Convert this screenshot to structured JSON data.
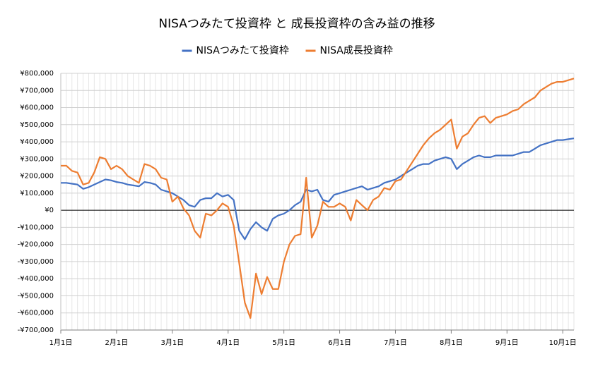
{
  "chart_data": {
    "type": "line",
    "title": "NISAつみたて投資枠 と 成長投資枠の含み益の推移",
    "categories": [
      "1月1日",
      null,
      null,
      null,
      null,
      null,
      null,
      null,
      null,
      null,
      "2月1日",
      null,
      null,
      null,
      null,
      null,
      null,
      null,
      null,
      null,
      "3月1日",
      null,
      null,
      null,
      null,
      null,
      null,
      null,
      null,
      null,
      "4月1日",
      null,
      null,
      null,
      null,
      null,
      null,
      null,
      null,
      null,
      "5月1日",
      null,
      null,
      null,
      null,
      null,
      null,
      null,
      null,
      null,
      "6月1日",
      null,
      null,
      null,
      null,
      null,
      null,
      null,
      null,
      null,
      "7月1日",
      null,
      null,
      null,
      null,
      null,
      null,
      null,
      null,
      null,
      "8月1日",
      null,
      null,
      null,
      null,
      null,
      null,
      null,
      null,
      null,
      "9月1日",
      null,
      null,
      null,
      null,
      null,
      null,
      null,
      null,
      null,
      "10月1日",
      null,
      null
    ],
    "series": [
      {
        "name": "NISAつみたて投資枠",
        "color": "#4472c4",
        "values": [
          160000,
          160000,
          155000,
          150000,
          125000,
          135000,
          150000,
          165000,
          180000,
          175000,
          165000,
          160000,
          150000,
          145000,
          140000,
          165000,
          160000,
          150000,
          120000,
          110000,
          100000,
          80000,
          60000,
          30000,
          20000,
          60000,
          70000,
          70000,
          100000,
          80000,
          90000,
          60000,
          -120000,
          -170000,
          -110000,
          -70000,
          -100000,
          -120000,
          -50000,
          -30000,
          -20000,
          0,
          30000,
          50000,
          120000,
          110000,
          120000,
          60000,
          50000,
          90000,
          100000,
          110000,
          120000,
          130000,
          140000,
          120000,
          130000,
          140000,
          160000,
          170000,
          180000,
          200000,
          220000,
          240000,
          260000,
          270000,
          270000,
          290000,
          300000,
          310000,
          300000,
          240000,
          270000,
          290000,
          310000,
          320000,
          310000,
          310000,
          320000,
          320000,
          320000,
          320000,
          330000,
          340000,
          340000,
          360000,
          380000,
          390000,
          400000,
          410000,
          410000,
          415000,
          420000
        ]
      },
      {
        "name": "NISA成長投資枠",
        "color": "#ed7d31",
        "values": [
          260000,
          260000,
          230000,
          220000,
          150000,
          160000,
          220000,
          310000,
          300000,
          240000,
          260000,
          240000,
          200000,
          180000,
          160000,
          270000,
          260000,
          240000,
          190000,
          180000,
          50000,
          80000,
          10000,
          -30000,
          -120000,
          -160000,
          -20000,
          -30000,
          0,
          40000,
          20000,
          -90000,
          -310000,
          -540000,
          -630000,
          -370000,
          -490000,
          -390000,
          -460000,
          -460000,
          -300000,
          -200000,
          -150000,
          -140000,
          190000,
          -160000,
          -90000,
          50000,
          20000,
          20000,
          40000,
          20000,
          -60000,
          60000,
          30000,
          0,
          60000,
          80000,
          130000,
          120000,
          170000,
          180000,
          230000,
          280000,
          330000,
          380000,
          420000,
          450000,
          470000,
          500000,
          530000,
          360000,
          430000,
          450000,
          500000,
          540000,
          550000,
          510000,
          540000,
          550000,
          560000,
          580000,
          590000,
          620000,
          640000,
          660000,
          700000,
          720000,
          740000,
          750000,
          750000,
          760000,
          770000
        ]
      }
    ],
    "ylim": [
      -700000,
      800000
    ],
    "yticks": [
      {
        "value": -700000,
        "label": "-¥700,000"
      },
      {
        "value": -600000,
        "label": "-¥600,000"
      },
      {
        "value": -500000,
        "label": "-¥500,000"
      },
      {
        "value": -400000,
        "label": "-¥400,000"
      },
      {
        "value": -300000,
        "label": "-¥300,000"
      },
      {
        "value": -200000,
        "label": "-¥200,000"
      },
      {
        "value": -100000,
        "label": "-¥100,000"
      },
      {
        "value": 0,
        "label": "¥0"
      },
      {
        "value": 100000,
        "label": "¥100,000"
      },
      {
        "value": 200000,
        "label": "¥200,000"
      },
      {
        "value": 300000,
        "label": "¥300,000"
      },
      {
        "value": 400000,
        "label": "¥400,000"
      },
      {
        "value": 500000,
        "label": "¥500,000"
      },
      {
        "value": 600000,
        "label": "¥600,000"
      },
      {
        "value": 700000,
        "label": "¥700,000"
      },
      {
        "value": 800000,
        "label": "¥800,000"
      }
    ],
    "grid": true,
    "legend": "top"
  }
}
